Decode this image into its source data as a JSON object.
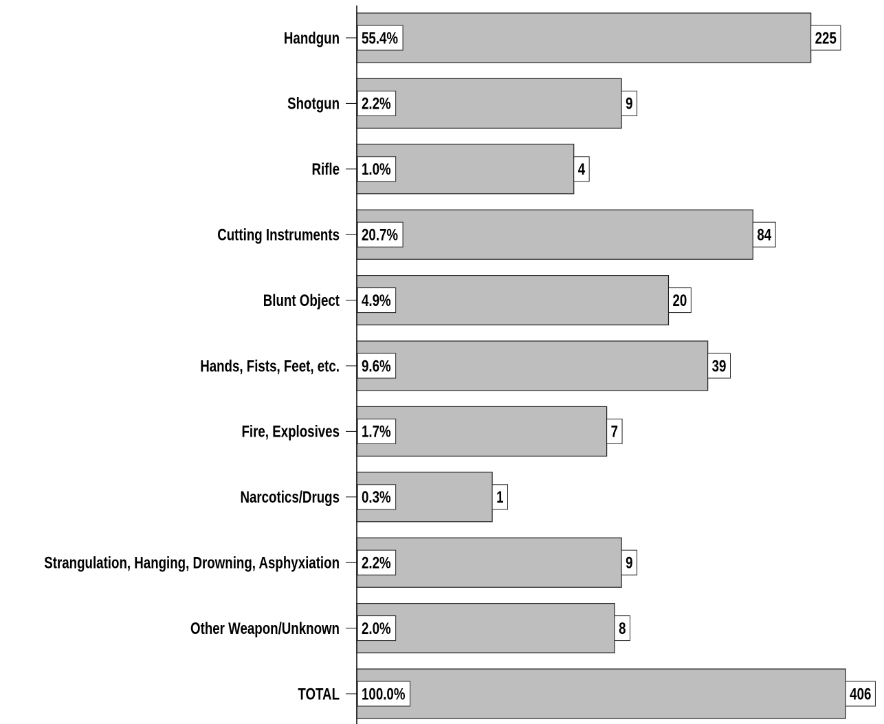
{
  "chart_data": {
    "type": "bar",
    "orientation": "horizontal",
    "log_scale": true,
    "categories": [
      "Handgun",
      "Shotgun",
      "Rifle",
      "Cutting Instruments",
      "Blunt Object",
      "Hands, Fists, Feet, etc.",
      "Fire, Explosives",
      "Narcotics/Drugs",
      "Strangulation, Hanging, Drowning, Asphyxiation",
      "Other Weapon/Unknown",
      "TOTAL"
    ],
    "values": [
      225,
      9,
      4,
      84,
      20,
      39,
      7,
      1,
      9,
      8,
      406
    ],
    "percent_labels": [
      "55.4%",
      "2.2%",
      "1.0%",
      "20.7%",
      "4.9%",
      "9.6%",
      "1.7%",
      "0.3%",
      "2.2%",
      "2.0%",
      "100.0%"
    ],
    "color": "#bebebe",
    "xlim": [
      0.1,
      500
    ]
  }
}
